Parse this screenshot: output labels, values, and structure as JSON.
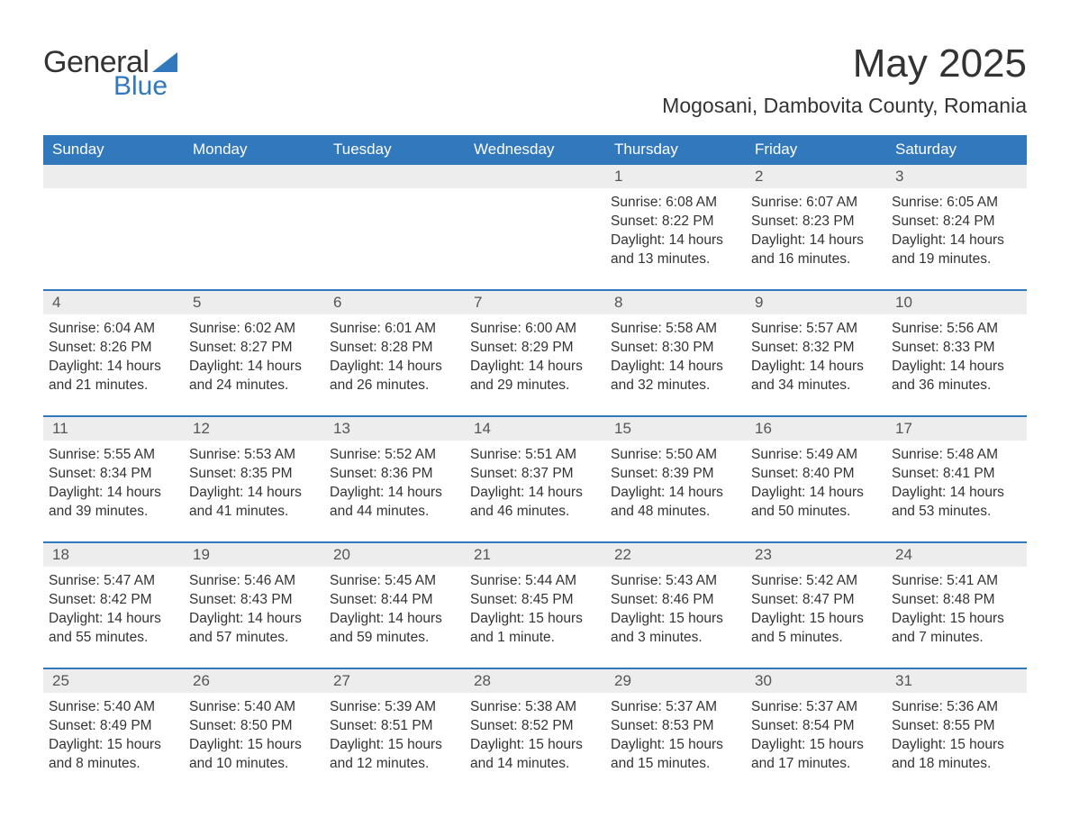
{
  "logo": {
    "text1": "General",
    "text2": "Blue"
  },
  "title": "May 2025",
  "location": "Mogosani, Dambovita County, Romania",
  "colors": {
    "header_bg": "#3178bd",
    "header_text": "#ffffff",
    "daynum_bg": "#ededed",
    "rule": "#3178bd",
    "body_text": "#333333",
    "logo_blue": "#3178bd"
  },
  "typography": {
    "title_fontsize": 44,
    "location_fontsize": 23,
    "dayhead_fontsize": 17,
    "cell_fontsize": 15.5
  },
  "day_headers": [
    "Sunday",
    "Monday",
    "Tuesday",
    "Wednesday",
    "Thursday",
    "Friday",
    "Saturday"
  ],
  "weeks": [
    [
      {
        "day": "",
        "sunrise": "",
        "sunset": "",
        "daylight": ""
      },
      {
        "day": "",
        "sunrise": "",
        "sunset": "",
        "daylight": ""
      },
      {
        "day": "",
        "sunrise": "",
        "sunset": "",
        "daylight": ""
      },
      {
        "day": "",
        "sunrise": "",
        "sunset": "",
        "daylight": ""
      },
      {
        "day": "1",
        "sunrise": "Sunrise: 6:08 AM",
        "sunset": "Sunset: 8:22 PM",
        "daylight": "Daylight: 14 hours and 13 minutes."
      },
      {
        "day": "2",
        "sunrise": "Sunrise: 6:07 AM",
        "sunset": "Sunset: 8:23 PM",
        "daylight": "Daylight: 14 hours and 16 minutes."
      },
      {
        "day": "3",
        "sunrise": "Sunrise: 6:05 AM",
        "sunset": "Sunset: 8:24 PM",
        "daylight": "Daylight: 14 hours and 19 minutes."
      }
    ],
    [
      {
        "day": "4",
        "sunrise": "Sunrise: 6:04 AM",
        "sunset": "Sunset: 8:26 PM",
        "daylight": "Daylight: 14 hours and 21 minutes."
      },
      {
        "day": "5",
        "sunrise": "Sunrise: 6:02 AM",
        "sunset": "Sunset: 8:27 PM",
        "daylight": "Daylight: 14 hours and 24 minutes."
      },
      {
        "day": "6",
        "sunrise": "Sunrise: 6:01 AM",
        "sunset": "Sunset: 8:28 PM",
        "daylight": "Daylight: 14 hours and 26 minutes."
      },
      {
        "day": "7",
        "sunrise": "Sunrise: 6:00 AM",
        "sunset": "Sunset: 8:29 PM",
        "daylight": "Daylight: 14 hours and 29 minutes."
      },
      {
        "day": "8",
        "sunrise": "Sunrise: 5:58 AM",
        "sunset": "Sunset: 8:30 PM",
        "daylight": "Daylight: 14 hours and 32 minutes."
      },
      {
        "day": "9",
        "sunrise": "Sunrise: 5:57 AM",
        "sunset": "Sunset: 8:32 PM",
        "daylight": "Daylight: 14 hours and 34 minutes."
      },
      {
        "day": "10",
        "sunrise": "Sunrise: 5:56 AM",
        "sunset": "Sunset: 8:33 PM",
        "daylight": "Daylight: 14 hours and 36 minutes."
      }
    ],
    [
      {
        "day": "11",
        "sunrise": "Sunrise: 5:55 AM",
        "sunset": "Sunset: 8:34 PM",
        "daylight": "Daylight: 14 hours and 39 minutes."
      },
      {
        "day": "12",
        "sunrise": "Sunrise: 5:53 AM",
        "sunset": "Sunset: 8:35 PM",
        "daylight": "Daylight: 14 hours and 41 minutes."
      },
      {
        "day": "13",
        "sunrise": "Sunrise: 5:52 AM",
        "sunset": "Sunset: 8:36 PM",
        "daylight": "Daylight: 14 hours and 44 minutes."
      },
      {
        "day": "14",
        "sunrise": "Sunrise: 5:51 AM",
        "sunset": "Sunset: 8:37 PM",
        "daylight": "Daylight: 14 hours and 46 minutes."
      },
      {
        "day": "15",
        "sunrise": "Sunrise: 5:50 AM",
        "sunset": "Sunset: 8:39 PM",
        "daylight": "Daylight: 14 hours and 48 minutes."
      },
      {
        "day": "16",
        "sunrise": "Sunrise: 5:49 AM",
        "sunset": "Sunset: 8:40 PM",
        "daylight": "Daylight: 14 hours and 50 minutes."
      },
      {
        "day": "17",
        "sunrise": "Sunrise: 5:48 AM",
        "sunset": "Sunset: 8:41 PM",
        "daylight": "Daylight: 14 hours and 53 minutes."
      }
    ],
    [
      {
        "day": "18",
        "sunrise": "Sunrise: 5:47 AM",
        "sunset": "Sunset: 8:42 PM",
        "daylight": "Daylight: 14 hours and 55 minutes."
      },
      {
        "day": "19",
        "sunrise": "Sunrise: 5:46 AM",
        "sunset": "Sunset: 8:43 PM",
        "daylight": "Daylight: 14 hours and 57 minutes."
      },
      {
        "day": "20",
        "sunrise": "Sunrise: 5:45 AM",
        "sunset": "Sunset: 8:44 PM",
        "daylight": "Daylight: 14 hours and 59 minutes."
      },
      {
        "day": "21",
        "sunrise": "Sunrise: 5:44 AM",
        "sunset": "Sunset: 8:45 PM",
        "daylight": "Daylight: 15 hours and 1 minute."
      },
      {
        "day": "22",
        "sunrise": "Sunrise: 5:43 AM",
        "sunset": "Sunset: 8:46 PM",
        "daylight": "Daylight: 15 hours and 3 minutes."
      },
      {
        "day": "23",
        "sunrise": "Sunrise: 5:42 AM",
        "sunset": "Sunset: 8:47 PM",
        "daylight": "Daylight: 15 hours and 5 minutes."
      },
      {
        "day": "24",
        "sunrise": "Sunrise: 5:41 AM",
        "sunset": "Sunset: 8:48 PM",
        "daylight": "Daylight: 15 hours and 7 minutes."
      }
    ],
    [
      {
        "day": "25",
        "sunrise": "Sunrise: 5:40 AM",
        "sunset": "Sunset: 8:49 PM",
        "daylight": "Daylight: 15 hours and 8 minutes."
      },
      {
        "day": "26",
        "sunrise": "Sunrise: 5:40 AM",
        "sunset": "Sunset: 8:50 PM",
        "daylight": "Daylight: 15 hours and 10 minutes."
      },
      {
        "day": "27",
        "sunrise": "Sunrise: 5:39 AM",
        "sunset": "Sunset: 8:51 PM",
        "daylight": "Daylight: 15 hours and 12 minutes."
      },
      {
        "day": "28",
        "sunrise": "Sunrise: 5:38 AM",
        "sunset": "Sunset: 8:52 PM",
        "daylight": "Daylight: 15 hours and 14 minutes."
      },
      {
        "day": "29",
        "sunrise": "Sunrise: 5:37 AM",
        "sunset": "Sunset: 8:53 PM",
        "daylight": "Daylight: 15 hours and 15 minutes."
      },
      {
        "day": "30",
        "sunrise": "Sunrise: 5:37 AM",
        "sunset": "Sunset: 8:54 PM",
        "daylight": "Daylight: 15 hours and 17 minutes."
      },
      {
        "day": "31",
        "sunrise": "Sunrise: 5:36 AM",
        "sunset": "Sunset: 8:55 PM",
        "daylight": "Daylight: 15 hours and 18 minutes."
      }
    ]
  ]
}
